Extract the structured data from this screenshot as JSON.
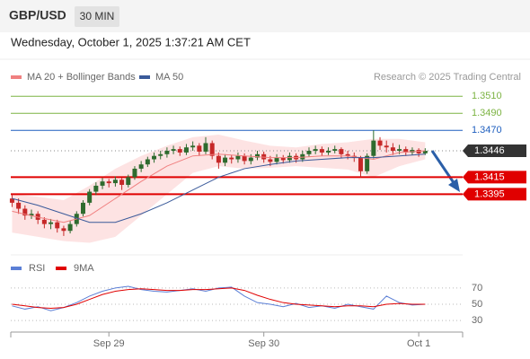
{
  "chart_data": {
    "type": "candlestick",
    "title": "GBP/USD",
    "timeframe": "30 MIN",
    "subtitle": "Wednesday, October 1, 2025 1:37:21 AM CET",
    "source": "Research © 2025 Trading Central",
    "up_color": "#2e6b2e",
    "down_color": "#c62828",
    "ylim": [
      1.3328,
      1.3544
    ],
    "xlim": [
      -0.2,
      69.8
    ],
    "xticks": [
      {
        "value": 15,
        "label": "Sep 29"
      },
      {
        "value": 39,
        "label": "Sep 30"
      },
      {
        "value": 63,
        "label": "Oct 1"
      }
    ],
    "candles": [
      [
        1.339,
        1.3395,
        1.338,
        1.3385
      ],
      [
        1.3385,
        1.339,
        1.3372,
        1.3378
      ],
      [
        1.3378,
        1.3382,
        1.3365,
        1.337
      ],
      [
        1.337,
        1.3377,
        1.3366,
        1.3372
      ],
      [
        1.3372,
        1.3375,
        1.336,
        1.3365
      ],
      [
        1.3365,
        1.3368,
        1.3355,
        1.336
      ],
      [
        1.336,
        1.3366,
        1.3354,
        1.3362
      ],
      [
        1.3362,
        1.3365,
        1.335,
        1.3355
      ],
      [
        1.3355,
        1.3358,
        1.3346,
        1.3352
      ],
      [
        1.3352,
        1.3364,
        1.3349,
        1.336
      ],
      [
        1.336,
        1.3375,
        1.3357,
        1.3372
      ],
      [
        1.3372,
        1.3388,
        1.3369,
        1.3385
      ],
      [
        1.3385,
        1.3401,
        1.3382,
        1.3398
      ],
      [
        1.3398,
        1.3409,
        1.3394,
        1.3405
      ],
      [
        1.3405,
        1.3414,
        1.3401,
        1.341
      ],
      [
        1.341,
        1.3413,
        1.3403,
        1.3408
      ],
      [
        1.3408,
        1.3416,
        1.3404,
        1.3412
      ],
      [
        1.3412,
        1.3414,
        1.34,
        1.3406
      ],
      [
        1.3406,
        1.3418,
        1.3403,
        1.3415
      ],
      [
        1.3415,
        1.3428,
        1.3412,
        1.3425
      ],
      [
        1.3425,
        1.3434,
        1.3421,
        1.343
      ],
      [
        1.343,
        1.3439,
        1.3427,
        1.3436
      ],
      [
        1.3436,
        1.3444,
        1.3432,
        1.344
      ],
      [
        1.344,
        1.3446,
        1.3436,
        1.3442
      ],
      [
        1.3442,
        1.345,
        1.3438,
        1.3446
      ],
      [
        1.3446,
        1.3452,
        1.3442,
        1.3448
      ],
      [
        1.3448,
        1.3451,
        1.344,
        1.3444
      ],
      [
        1.3444,
        1.3454,
        1.3441,
        1.345
      ],
      [
        1.345,
        1.3457,
        1.3446,
        1.3452
      ],
      [
        1.3452,
        1.3455,
        1.344,
        1.3445
      ],
      [
        1.3445,
        1.3462,
        1.3442,
        1.3455
      ],
      [
        1.3455,
        1.3458,
        1.3436,
        1.344
      ],
      [
        1.344,
        1.3444,
        1.3425,
        1.3432
      ],
      [
        1.3432,
        1.3442,
        1.3428,
        1.3438
      ],
      [
        1.3438,
        1.3441,
        1.3431,
        1.3436
      ],
      [
        1.3436,
        1.3444,
        1.3432,
        1.344
      ],
      [
        1.344,
        1.3443,
        1.343,
        1.3434
      ],
      [
        1.3434,
        1.3442,
        1.343,
        1.3438
      ],
      [
        1.3438,
        1.3446,
        1.3435,
        1.3442
      ],
      [
        1.3442,
        1.3445,
        1.3432,
        1.3436
      ],
      [
        1.3436,
        1.344,
        1.3428,
        1.3433
      ],
      [
        1.3433,
        1.3442,
        1.343,
        1.3438
      ],
      [
        1.3438,
        1.3441,
        1.3431,
        1.3435
      ],
      [
        1.3435,
        1.3444,
        1.3432,
        1.344
      ],
      [
        1.344,
        1.3443,
        1.3432,
        1.3436
      ],
      [
        1.3436,
        1.3446,
        1.3433,
        1.3442
      ],
      [
        1.3442,
        1.345,
        1.3439,
        1.3446
      ],
      [
        1.3446,
        1.3452,
        1.3442,
        1.3448
      ],
      [
        1.3448,
        1.3451,
        1.344,
        1.3444
      ],
      [
        1.3444,
        1.345,
        1.3441,
        1.3446
      ],
      [
        1.3446,
        1.3452,
        1.3443,
        1.3448
      ],
      [
        1.3448,
        1.345,
        1.3438,
        1.3442
      ],
      [
        1.3442,
        1.3446,
        1.3436,
        1.344
      ],
      [
        1.344,
        1.3444,
        1.3433,
        1.3438
      ],
      [
        1.3438,
        1.344,
        1.3415,
        1.3422
      ],
      [
        1.3422,
        1.3443,
        1.3419,
        1.344
      ],
      [
        1.344,
        1.347,
        1.3437,
        1.3458
      ],
      [
        1.3458,
        1.3462,
        1.3447,
        1.3452
      ],
      [
        1.3452,
        1.3458,
        1.3444,
        1.345
      ],
      [
        1.345,
        1.3455,
        1.3441,
        1.3446
      ],
      [
        1.3446,
        1.3453,
        1.3442,
        1.3448
      ],
      [
        1.3448,
        1.3451,
        1.344,
        1.3444
      ],
      [
        1.3444,
        1.345,
        1.3441,
        1.3447
      ],
      [
        1.3447,
        1.3449,
        1.3439,
        1.3443
      ],
      [
        1.3443,
        1.3449,
        1.3441,
        1.3446
      ]
    ],
    "x": [
      0,
      4,
      8,
      12,
      16,
      20,
      24,
      28,
      32,
      36,
      40,
      44,
      48,
      52,
      56,
      60,
      64
    ],
    "band_color": "#fde3e3",
    "series": [
      {
        "name": "MA 20 + Bollinger Bands",
        "color": "#f08080",
        "values": [
          1.3375,
          1.3368,
          1.3362,
          1.337,
          1.339,
          1.341,
          1.3428,
          1.344,
          1.3442,
          1.344,
          1.3438,
          1.3438,
          1.344,
          1.344,
          1.3436,
          1.3444,
          1.3446
        ],
        "upper": [
          1.3395,
          1.3392,
          1.3388,
          1.3405,
          1.3425,
          1.344,
          1.3452,
          1.3462,
          1.3465,
          1.3458,
          1.3452,
          1.345,
          1.3454,
          1.3456,
          1.346,
          1.346,
          1.3456
        ],
        "lower": [
          1.335,
          1.3345,
          1.334,
          1.3338,
          1.3345,
          1.337,
          1.3395,
          1.342,
          1.3428,
          1.3425,
          1.3426,
          1.3428,
          1.3426,
          1.3424,
          1.3415,
          1.3428,
          1.3436
        ]
      },
      {
        "name": "MA 50",
        "color": "#3a5a9a",
        "values": [
          1.339,
          1.3382,
          1.3372,
          1.3362,
          1.3362,
          1.3372,
          1.3385,
          1.34,
          1.3415,
          1.3425,
          1.343,
          1.3434,
          1.3436,
          1.3438,
          1.3438,
          1.344,
          1.3442
        ]
      }
    ],
    "levels": [
      {
        "value": 1.351,
        "label": "1.3510",
        "color": "#7cb342",
        "style": "text"
      },
      {
        "value": 1.349,
        "label": "1.3490",
        "color": "#7cb342",
        "style": "text"
      },
      {
        "value": 1.347,
        "label": "1.3470",
        "color": "#1f5fbf",
        "style": "text"
      },
      {
        "value": 1.3446,
        "label": "1.3446",
        "color": "#333333",
        "style": "dotted-box"
      },
      {
        "value": 1.3415,
        "label": "1.3415",
        "color": "#e00000",
        "style": "box"
      },
      {
        "value": 1.3395,
        "label": "1.3395",
        "color": "#e00000",
        "style": "box"
      }
    ],
    "rsi": {
      "ylim": [
        18,
        93
      ],
      "yticks": [
        70,
        50,
        30
      ],
      "x": [
        0,
        2,
        4,
        6,
        8,
        10,
        12,
        14,
        16,
        18,
        20,
        22,
        24,
        26,
        28,
        30,
        32,
        34,
        36,
        38,
        40,
        42,
        44,
        46,
        48,
        50,
        52,
        54,
        56,
        58,
        60,
        62,
        64
      ],
      "series": [
        {
          "name": "RSI",
          "color": "#5b7fd6",
          "values": [
            48,
            44,
            47,
            42,
            46,
            52,
            60,
            66,
            70,
            72,
            68,
            66,
            65,
            67,
            69,
            66,
            70,
            71,
            60,
            52,
            50,
            47,
            51,
            46,
            48,
            45,
            50,
            47,
            44,
            60,
            52,
            49,
            50
          ]
        },
        {
          "name": "9MA",
          "color": "#e00000",
          "values": [
            50,
            48,
            46,
            45,
            46,
            50,
            56,
            62,
            66,
            68,
            69,
            68,
            67,
            67,
            68,
            68,
            69,
            70,
            67,
            61,
            56,
            52,
            50,
            49,
            48,
            47,
            48,
            48,
            47,
            50,
            51,
            50,
            50
          ]
        }
      ]
    }
  }
}
